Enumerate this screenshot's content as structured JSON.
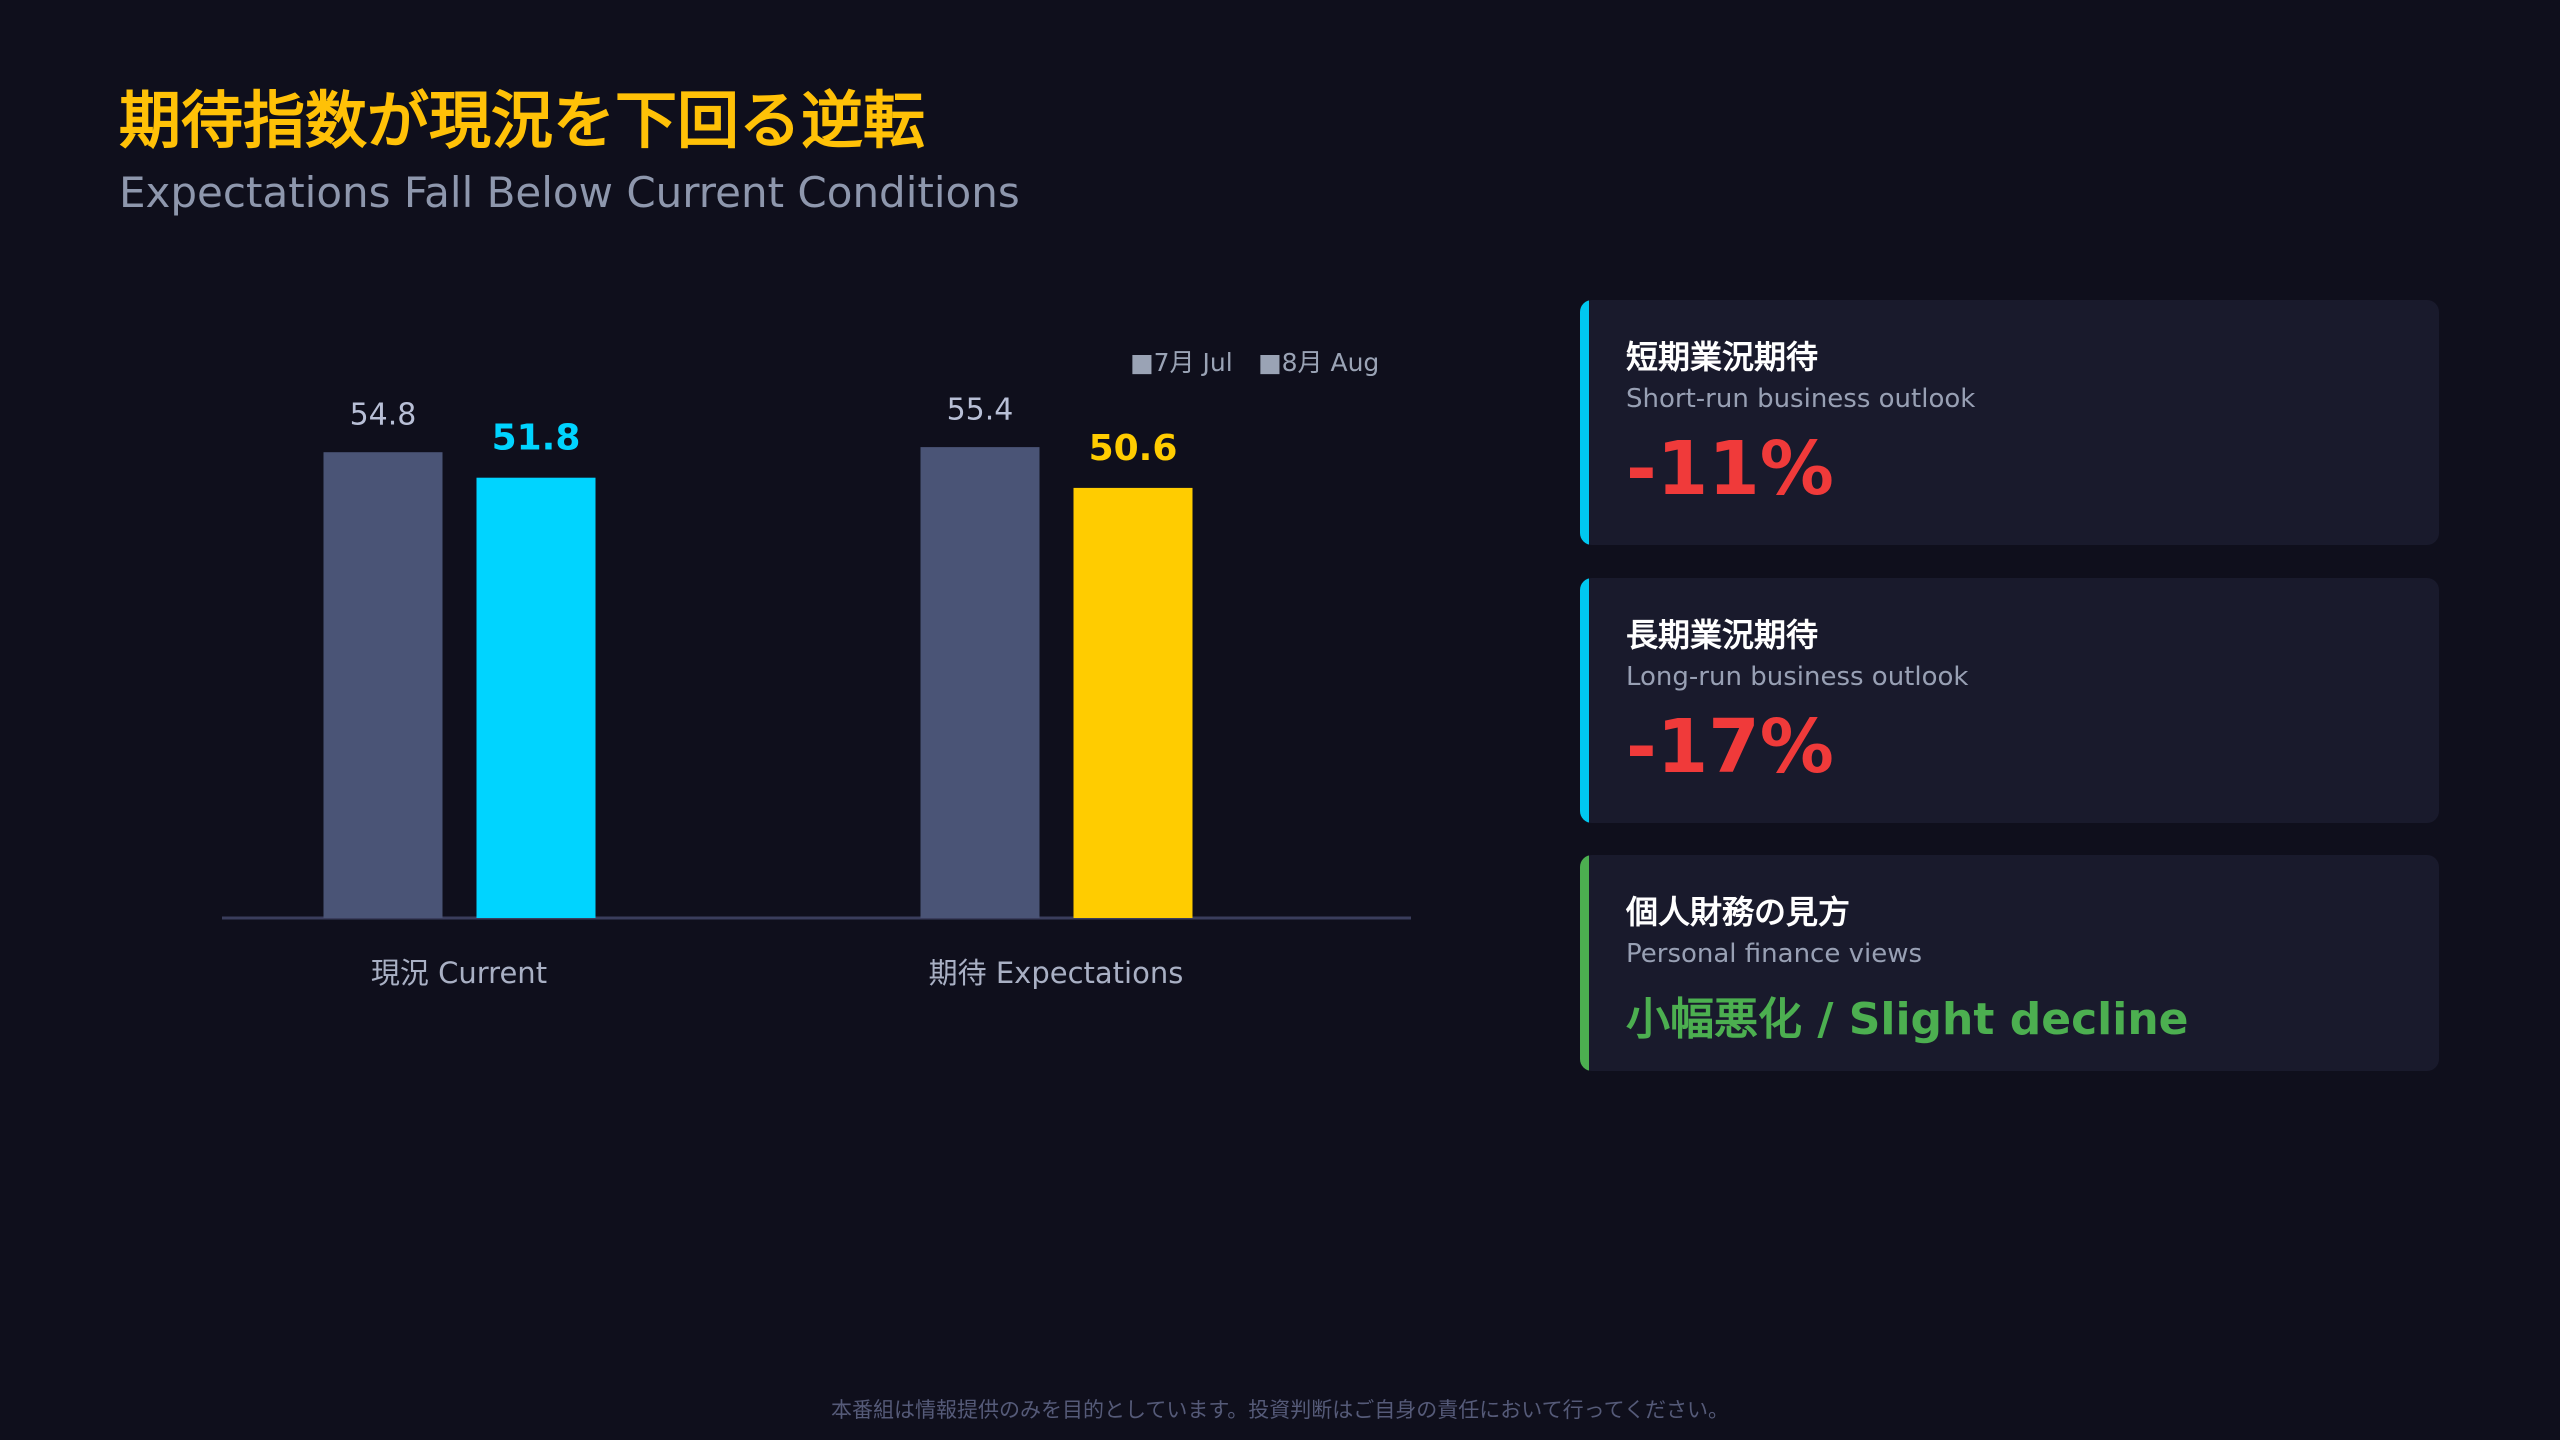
{
  "header": {
    "title": "期待指数が現況を下回る逆転",
    "subtitle": "Expectations Fall Below Current Conditions"
  },
  "chart_data": {
    "type": "bar",
    "categories": [
      "現況 Current",
      "期待 Expectations"
    ],
    "series": [
      {
        "name": "■7月 Jul",
        "color": "#4a5476",
        "values": [
          54.8,
          55.4
        ]
      },
      {
        "name": "■8月 Aug",
        "colors": [
          "#00d4ff",
          "#ffcc00"
        ],
        "values": [
          51.8,
          50.6
        ]
      }
    ],
    "ylim": [
      0,
      60
    ]
  },
  "cards": [
    {
      "title": "短期業況期待",
      "subtitle": "Short-run business outlook",
      "value": "-11%",
      "accent": "#00c8f0",
      "value_color": "#f03a3a"
    },
    {
      "title": "長期業況期待",
      "subtitle": "Long-run business outlook",
      "value": "-17%",
      "accent": "#00c8f0",
      "value_color": "#f03a3a"
    },
    {
      "title": "個人財務の見方",
      "subtitle": "Personal finance views",
      "value": "小幅悪化 / Slight decline",
      "accent": "#4caf50",
      "value_color": "#4caf50"
    }
  ],
  "footer": "本番組は情報提供のみを目的としています。投資判断はご自身の責任において行ってください。"
}
